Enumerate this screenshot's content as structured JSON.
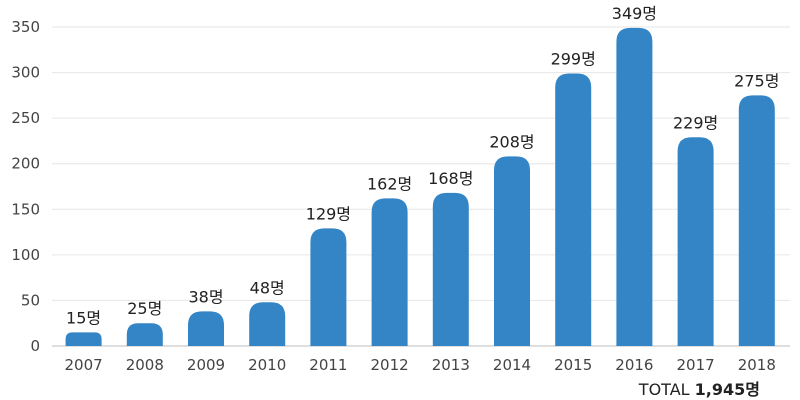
{
  "chart_data": {
    "type": "bar",
    "categories": [
      "2007",
      "2008",
      "2009",
      "2010",
      "2011",
      "2012",
      "2013",
      "2014",
      "2015",
      "2016",
      "2017",
      "2018"
    ],
    "values": [
      15,
      25,
      38,
      48,
      129,
      162,
      168,
      208,
      299,
      349,
      229,
      275
    ],
    "value_labels": [
      "15명",
      "25명",
      "38명",
      "48명",
      "129명",
      "162명",
      "168명",
      "208명",
      "299명",
      "349명",
      "229명",
      "275명"
    ],
    "ylim": [
      0,
      350
    ],
    "yticks": [
      0,
      50,
      100,
      150,
      200,
      250,
      300,
      350
    ],
    "grid": true,
    "bar_color": "#3385c6"
  },
  "total": {
    "label": "TOTAL",
    "value": "1,945명"
  }
}
